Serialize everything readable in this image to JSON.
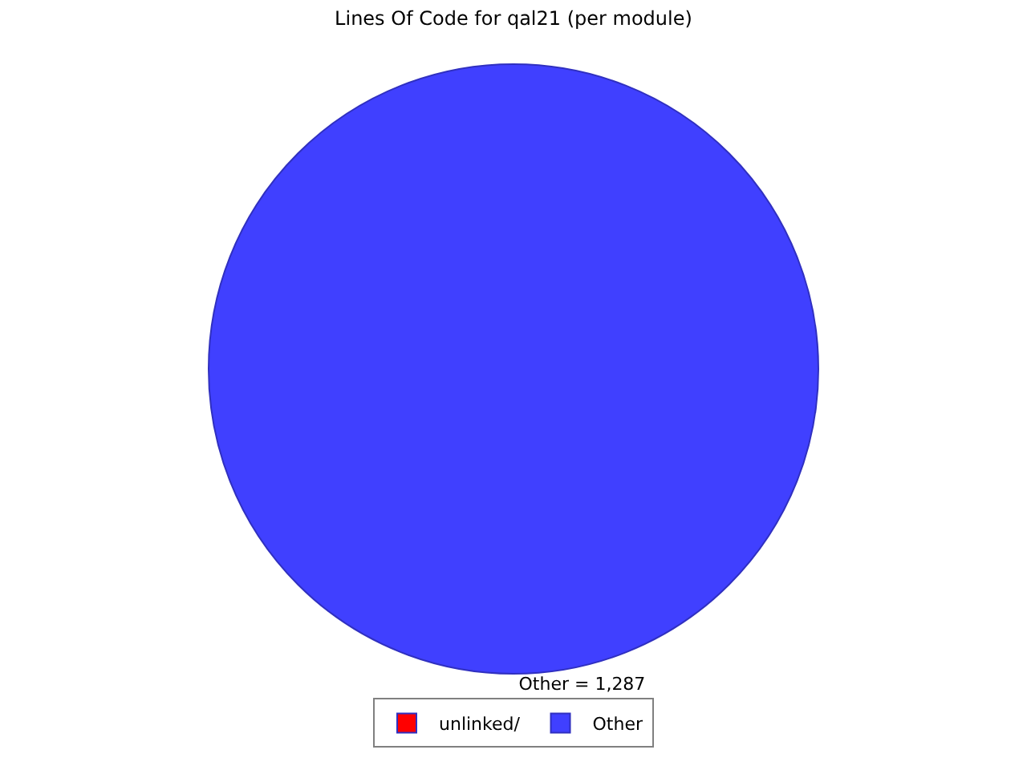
{
  "chart_data": {
    "type": "pie",
    "title": "Lines Of Code for qal21 (per module)",
    "categories": [
      "unlinked/",
      "Other"
    ],
    "values": [
      0,
      1287
    ],
    "colors": [
      "#ff0000",
      "#4040ff"
    ],
    "value_labels": [
      null,
      "Other = 1,287"
    ],
    "legend": "bottom"
  }
}
